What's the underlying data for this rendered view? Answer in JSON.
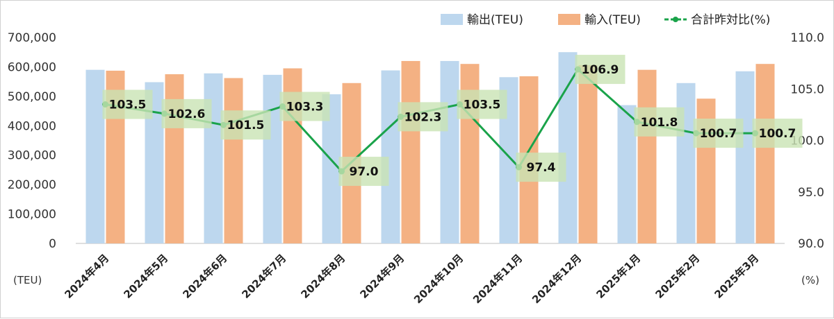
{
  "chart_data": {
    "type": "bar",
    "categories": [
      "2024年4月",
      "2024年5月",
      "2024年6月",
      "2024年7月",
      "2024年8月",
      "2024年9月",
      "2024年10月",
      "2024年11月",
      "2024年12月",
      "2025年1月",
      "2025年2月",
      "2025年3月"
    ],
    "series": [
      {
        "name": "輸出(TEU)",
        "type": "bar",
        "axis": "left",
        "color": "#bdd7ee",
        "values": [
          590000,
          548000,
          578000,
          573000,
          507000,
          588000,
          620000,
          565000,
          650000,
          470000,
          545000,
          585000
        ]
      },
      {
        "name": "輸入(TEU)",
        "type": "bar",
        "axis": "left",
        "color": "#f4b183",
        "values": [
          587000,
          575000,
          562000,
          595000,
          545000,
          620000,
          610000,
          568000,
          606000,
          590000,
          492000,
          610000
        ]
      },
      {
        "name": "合計昨対比(%)",
        "type": "line",
        "axis": "right",
        "color": "#1aa34a",
        "values": [
          103.5,
          102.6,
          101.5,
          103.3,
          97.0,
          102.3,
          103.5,
          97.4,
          106.9,
          101.8,
          100.7,
          100.7
        ],
        "labels": [
          "103.5",
          "102.6",
          "101.5",
          "103.3",
          "97.0",
          "102.3",
          "103.5",
          "97.4",
          "106.9",
          "101.8",
          "100.7",
          "100.7"
        ]
      }
    ],
    "y_left": {
      "min": 0,
      "max": 700000,
      "step": 100000,
      "ticks": [
        "0",
        "100,000",
        "200,000",
        "300,000",
        "400,000",
        "500,000",
        "600,000",
        "700,000"
      ],
      "unit": "(TEU)"
    },
    "y_right": {
      "min": 90,
      "max": 110,
      "step": 5,
      "ticks": [
        "90.0",
        "95.0",
        "100.0",
        "105.0",
        "110.0"
      ],
      "unit": "(%)"
    },
    "legend_position": "top-right",
    "grid": false,
    "data_label_bg": "#c9e3b4"
  }
}
